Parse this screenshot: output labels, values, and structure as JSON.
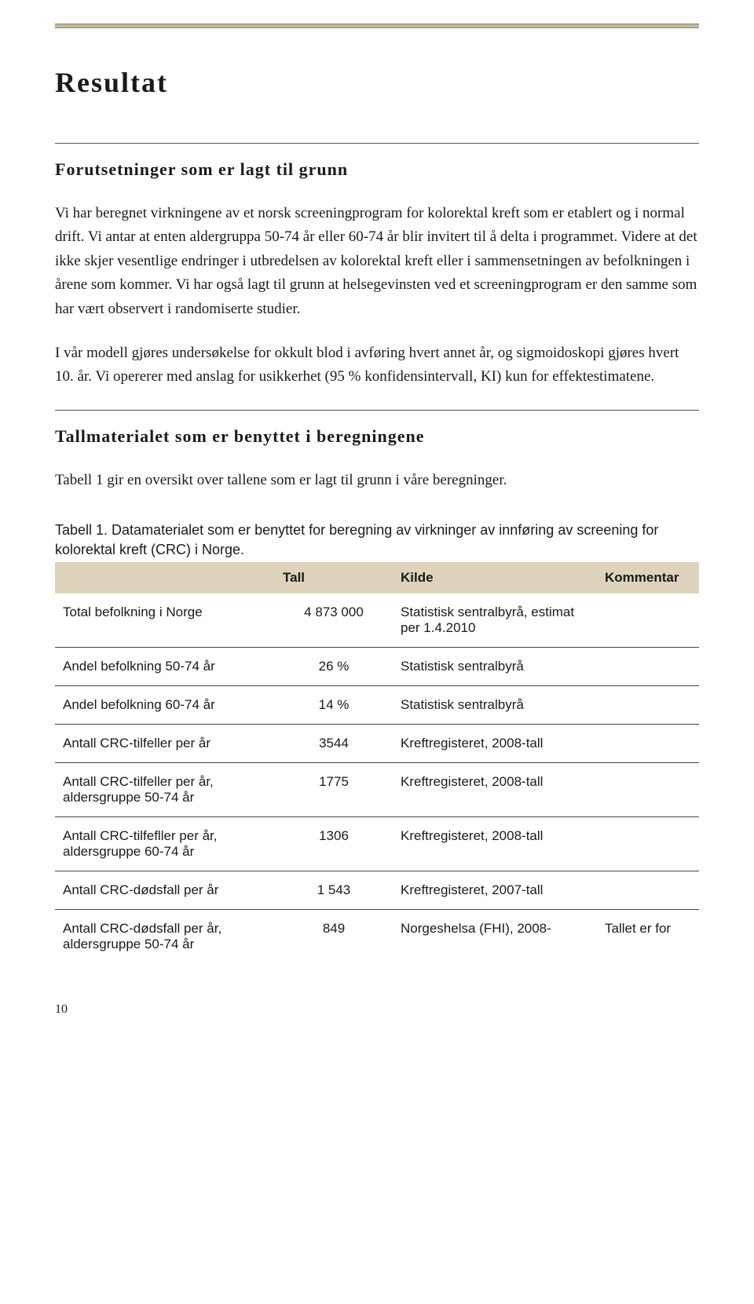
{
  "colors": {
    "rule_fill": "#c4b89a",
    "rule_border": "#888888",
    "table_header_bg": "#ddd3bd",
    "text": "#1a1a1a",
    "row_border": "#444444",
    "background": "#ffffff"
  },
  "page_title": "Resultat",
  "sections": {
    "s1": {
      "heading": "Forutsetninger som er lagt til grunn",
      "p1": "Vi har beregnet virkningene av et norsk screeningprogram for kolorektal kreft som er etablert og i normal drift. Vi antar at enten aldergruppa 50-74 år eller 60-74 år blir invitert til å delta i programmet. Videre at det ikke skjer vesentlige endringer i utbredelsen av kolorektal kreft eller i sammensetningen av befolkningen i årene som kommer. Vi har også lagt til grunn at helsegevinsten ved et screeningprogram er den samme som har vært observert i randomiserte studier.",
      "p2": "I vår modell gjøres undersøkelse for okkult blod i avføring hvert annet år, og sigmoidoskopi gjøres hvert 10. år. Vi opererer med anslag for usikkerhet (95 % konfidensintervall, KI) kun for effektestimatene."
    },
    "s2": {
      "heading": "Tallmaterialet som er benyttet i beregningene",
      "p1": "Tabell 1 gir en oversikt over tallene som er lagt til grunn i våre beregninger."
    }
  },
  "table": {
    "caption": "Tabell 1. Datamaterialet som er benyttet for beregning av virkninger av innføring av screening for kolorektal kreft (CRC) i Norge.",
    "columns": {
      "c1": "",
      "c2": "Tall",
      "c3": "Kilde",
      "c4": "Kommentar"
    },
    "rows": {
      "r0": {
        "label": "Total befolkning i Norge",
        "tall": "4 873 000",
        "kilde": "Statistisk sentralbyrå, estimat per 1.4.2010",
        "komm": ""
      },
      "r1": {
        "label": "Andel befolkning 50-74 år",
        "tall": "26 %",
        "kilde": "Statistisk sentralbyrå",
        "komm": ""
      },
      "r2": {
        "label": "Andel befolkning 60-74 år",
        "tall": "14 %",
        "kilde": "Statistisk sentralbyrå",
        "komm": ""
      },
      "r3": {
        "label": "Antall CRC-tilfeller per år",
        "tall": "3544",
        "kilde": "Kreftregisteret, 2008-tall",
        "komm": ""
      },
      "r4": {
        "label": "Antall CRC-tilfeller per år, aldersgruppe 50-74 år",
        "tall": "1775",
        "kilde": "Kreftregisteret, 2008-tall",
        "komm": ""
      },
      "r5": {
        "label": "Antall CRC-tilfefller per år, aldersgruppe 60-74 år",
        "tall": "1306",
        "kilde": "Kreftregisteret, 2008-tall",
        "komm": ""
      },
      "r6": {
        "label": "Antall CRC-dødsfall per år",
        "tall": "1 543",
        "kilde": "Kreftregisteret, 2007-tall",
        "komm": ""
      },
      "r7": {
        "label": "Antall CRC-dødsfall per år, aldersgruppe 50-74 år",
        "tall": "849",
        "kilde": "Norgeshelsa (FHI), 2008-",
        "komm": "Tallet er for"
      }
    }
  },
  "page_number": "10"
}
